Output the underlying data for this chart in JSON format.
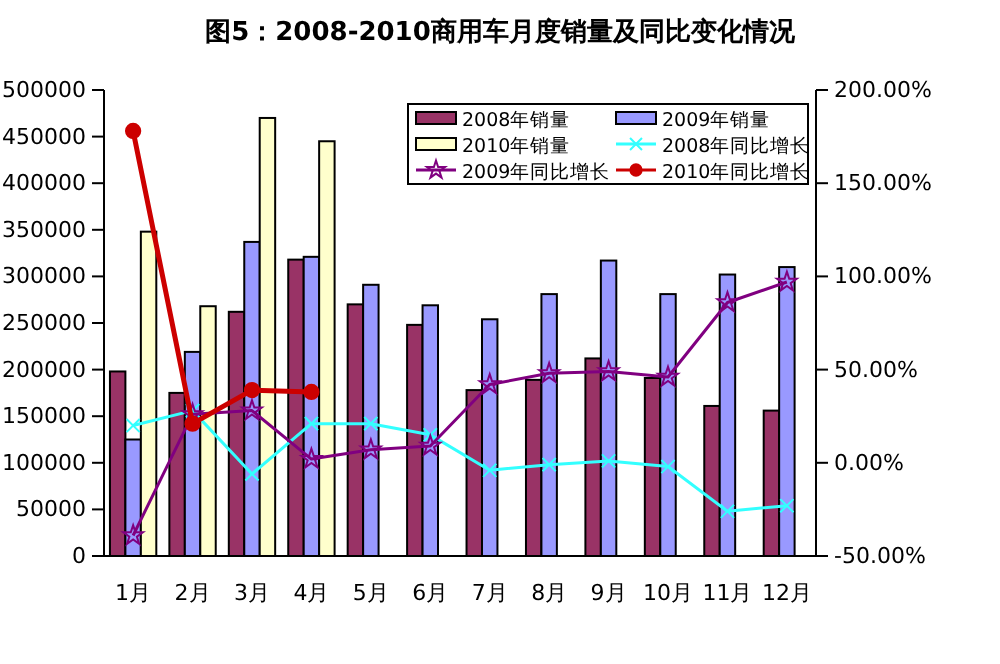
{
  "chart_data": {
    "type": "bar",
    "title": "图5：2008-2010商用车月度销量及同比变化情况",
    "categories": [
      "1月",
      "2月",
      "3月",
      "4月",
      "5月",
      "6月",
      "7月",
      "8月",
      "9月",
      "10月",
      "11月",
      "12月"
    ],
    "series": [
      {
        "name": "2008年销量",
        "color": "#993366",
        "values": [
          198000,
          175000,
          262000,
          318000,
          270000,
          248000,
          178000,
          189000,
          212000,
          191000,
          161000,
          156000
        ]
      },
      {
        "name": "2009年销量",
        "color": "#9999ff",
        "values": [
          125000,
          219000,
          337000,
          321000,
          291000,
          269000,
          254000,
          281000,
          317000,
          281000,
          302000,
          310000
        ]
      },
      {
        "name": "2010年销量",
        "color": "#ffffcc",
        "values": [
          348000,
          268000,
          470000,
          445000,
          null,
          null,
          null,
          null,
          null,
          null,
          null,
          null
        ]
      },
      {
        "name": "2008年同比增长",
        "type": "line",
        "axis": "y2",
        "marker": "cross",
        "color": "#33ffff",
        "values": [
          20,
          28,
          -6,
          21,
          21,
          15,
          -4,
          -1,
          1,
          -2,
          -26,
          -23
        ]
      },
      {
        "name": "2009年同比增长",
        "type": "line",
        "axis": "y2",
        "marker": "star",
        "color": "#800080",
        "values": [
          -39,
          26,
          28,
          2,
          7,
          9,
          42,
          48,
          49,
          46,
          86,
          97
        ]
      },
      {
        "name": "2010年同比增长",
        "type": "line",
        "axis": "y2",
        "marker": "circle",
        "color": "#cc0000",
        "values": [
          178,
          21,
          39,
          38,
          null,
          null,
          null,
          null,
          null,
          null,
          null,
          null
        ]
      }
    ],
    "ylim": [
      0,
      500000
    ],
    "yticks": [
      0,
      50000,
      100000,
      150000,
      200000,
      250000,
      300000,
      350000,
      400000,
      450000,
      500000
    ],
    "y2lim": [
      -50,
      200
    ],
    "y2ticks": [
      {
        "value": -50,
        "label": "-50.00%"
      },
      {
        "value": 0,
        "label": "0.00%"
      },
      {
        "value": 50,
        "label": "50.00%"
      },
      {
        "value": 100,
        "label": "100.00%"
      },
      {
        "value": 150,
        "label": "150.00%"
      },
      {
        "value": 200,
        "label": "200.00%"
      }
    ],
    "legend": "top right"
  }
}
